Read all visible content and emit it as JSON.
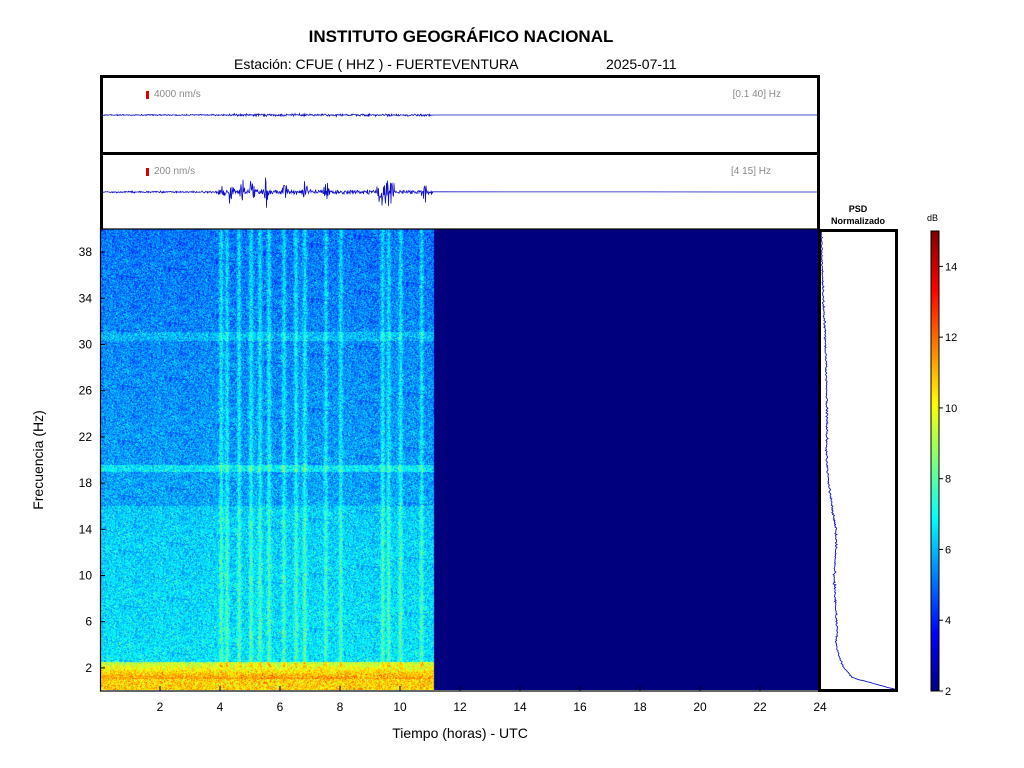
{
  "header": {
    "title": "INSTITUTO GEOGRÁFICO NACIONAL",
    "station": "Estación:  CFUE ( HHZ ) - FUERTEVENTURA",
    "date": "2025-07-11"
  },
  "colors": {
    "trace": "#1010c8",
    "scale_marker": "#e00000",
    "colormap": [
      "#00007f",
      "#0000ff",
      "#007fff",
      "#00ffff",
      "#7fff7f",
      "#ffff00",
      "#ff7f00",
      "#ff0000",
      "#7f0000"
    ]
  },
  "chart_data": [
    {
      "type": "line",
      "name": "seismogram-broadband",
      "scale_label": "4000 nm/s",
      "filter_label": "[0.1 40] Hz",
      "data_end_hour": 11.1,
      "x_range": [
        0,
        24
      ]
    },
    {
      "type": "line",
      "name": "seismogram-highpass",
      "scale_label": "200 nm/s",
      "filter_label": "[4 15] Hz",
      "data_end_hour": 11.1,
      "x_range": [
        0,
        24
      ],
      "bursts_hours": [
        4.0,
        4.3,
        4.7,
        5.0,
        5.5,
        6.1,
        6.8,
        7.5,
        9.4,
        9.6,
        10.8
      ]
    },
    {
      "type": "heatmap",
      "name": "spectrogram",
      "xlabel": "Tiempo (horas) - UTC",
      "ylabel": "Frecuencia  (Hz)",
      "xlim": [
        0,
        24
      ],
      "ylim": [
        0,
        40
      ],
      "xticks": [
        2,
        4,
        6,
        8,
        10,
        12,
        14,
        16,
        18,
        20,
        22,
        24
      ],
      "yticks": [
        2,
        6,
        10,
        14,
        18,
        22,
        26,
        30,
        34,
        38
      ],
      "data_end_hour": 11.1,
      "vertical_events_hours": [
        4.0,
        4.2,
        4.6,
        5.0,
        5.3,
        5.6,
        6.1,
        6.5,
        6.8,
        7.5,
        8.0,
        9.4,
        9.6,
        10.0,
        10.7
      ]
    },
    {
      "type": "line",
      "name": "psd-normalized",
      "title": "PSD\nNormalizado",
      "ylim": [
        0,
        40
      ],
      "profile": [
        [
          0,
          0.98
        ],
        [
          0.5,
          0.7
        ],
        [
          1,
          0.42
        ],
        [
          2,
          0.3
        ],
        [
          3,
          0.24
        ],
        [
          4,
          0.2
        ],
        [
          5,
          0.22
        ],
        [
          6,
          0.21
        ],
        [
          8,
          0.19
        ],
        [
          10,
          0.18
        ],
        [
          12,
          0.2
        ],
        [
          14,
          0.2
        ],
        [
          16,
          0.15
        ],
        [
          18,
          0.1
        ],
        [
          20,
          0.08
        ],
        [
          22,
          0.08
        ],
        [
          24,
          0.08
        ],
        [
          26,
          0.08
        ],
        [
          28,
          0.07
        ],
        [
          30,
          0.06
        ],
        [
          32,
          0.05
        ],
        [
          34,
          0.03
        ],
        [
          36,
          0.02
        ],
        [
          38,
          0.01
        ],
        [
          40,
          0.0
        ]
      ]
    },
    {
      "type": "colorbar",
      "name": "colorbar",
      "unit": "dB",
      "range": [
        2,
        15
      ],
      "ticks": [
        2,
        4,
        6,
        8,
        10,
        12,
        14
      ]
    }
  ]
}
